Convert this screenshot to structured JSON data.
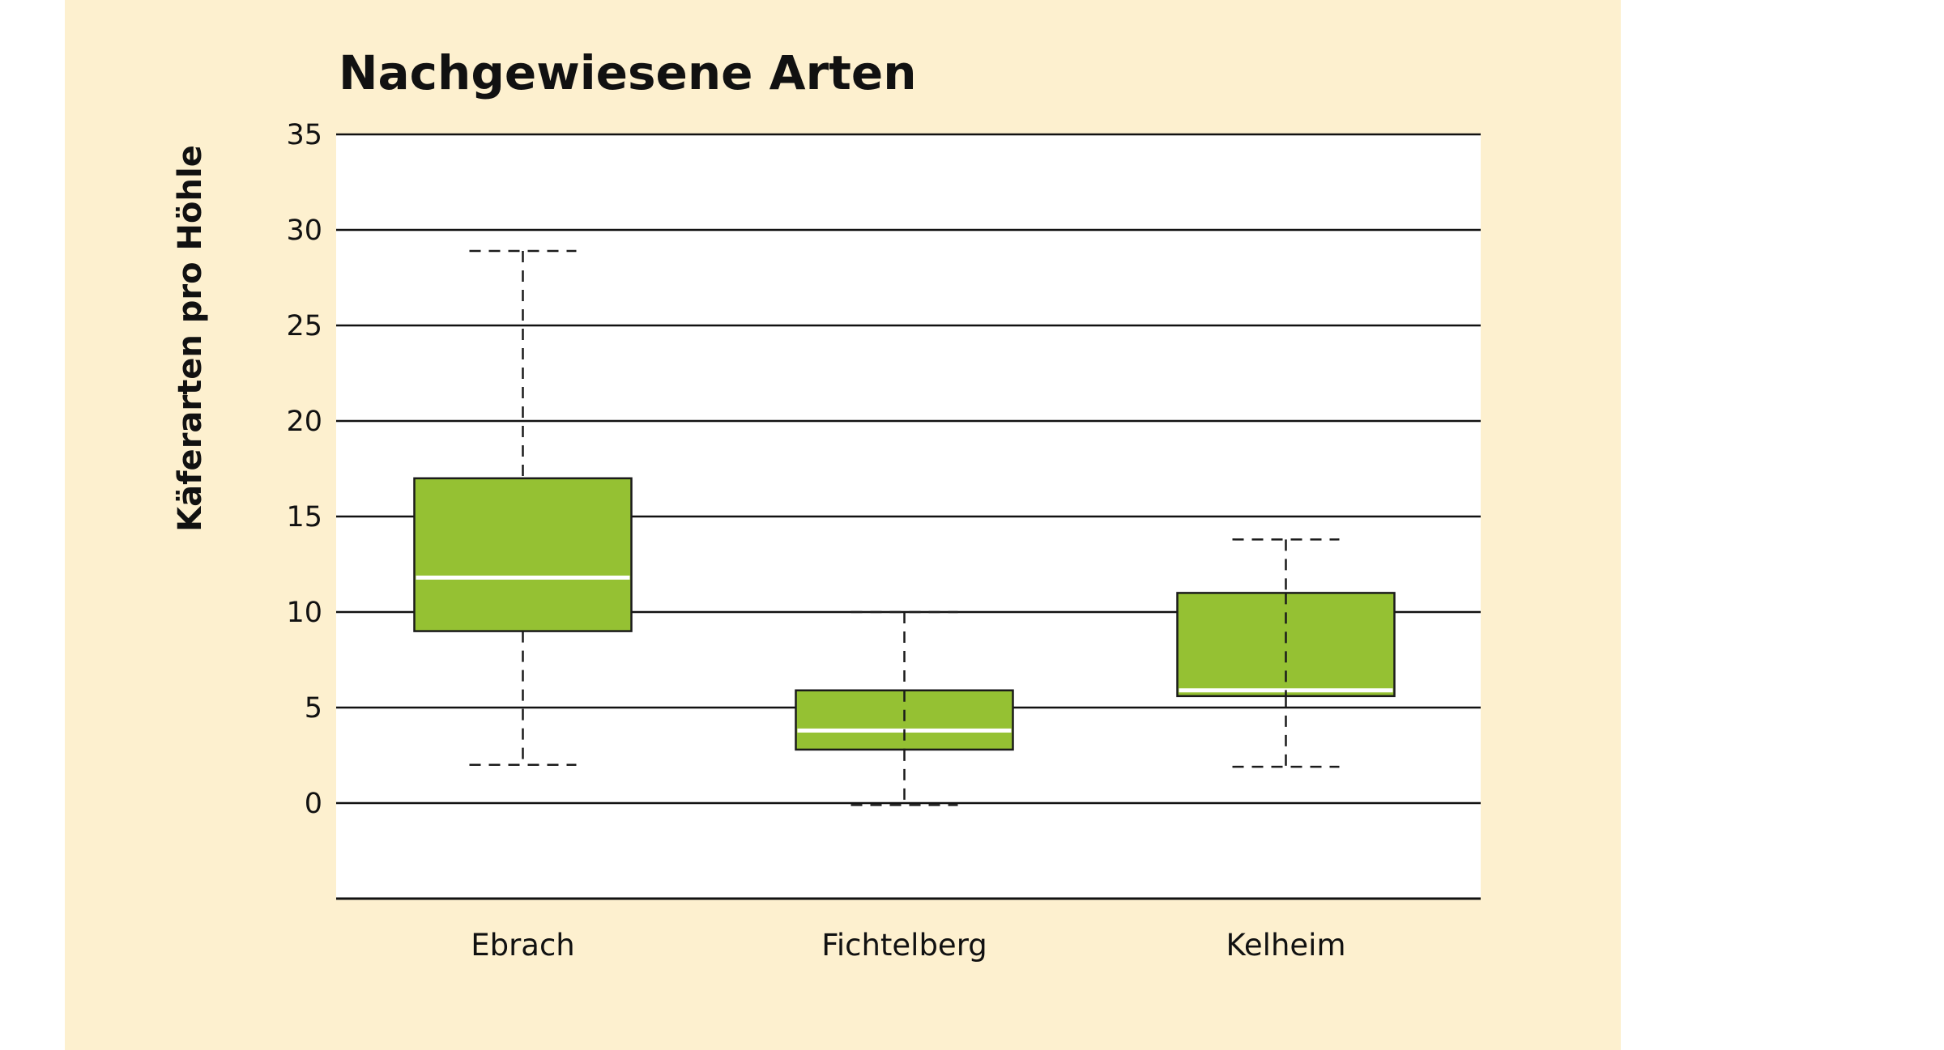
{
  "colors": {
    "panel_background": "#fdf0cf",
    "plot_background": "#ffffff",
    "box_fill": "#95c133",
    "box_stroke": "#1a1a1a",
    "median": "#ffffff",
    "grid": "#111111"
  },
  "chart_data": {
    "type": "boxplot",
    "title": "Nachgewiesene Arten",
    "xlabel": "",
    "ylabel": "Käferarten pro Höhle",
    "ylim": [
      -5,
      35
    ],
    "yticks": [
      0,
      5,
      10,
      15,
      20,
      25,
      30,
      35
    ],
    "grid": true,
    "whisker_style": "dashed",
    "categories": [
      "Ebrach",
      "Fichtelberg",
      "Kelheim"
    ],
    "boxes": [
      {
        "category": "Ebrach",
        "min": 2,
        "q1": 9,
        "median": 11.8,
        "q3": 17,
        "max": 28.9
      },
      {
        "category": "Fichtelberg",
        "min": -0.1,
        "q1": 2.8,
        "median": 3.8,
        "q3": 5.9,
        "max": 10
      },
      {
        "category": "Kelheim",
        "min": 1.9,
        "q1": 5.6,
        "median": 5.9,
        "q3": 11,
        "max": 13.8
      }
    ]
  }
}
